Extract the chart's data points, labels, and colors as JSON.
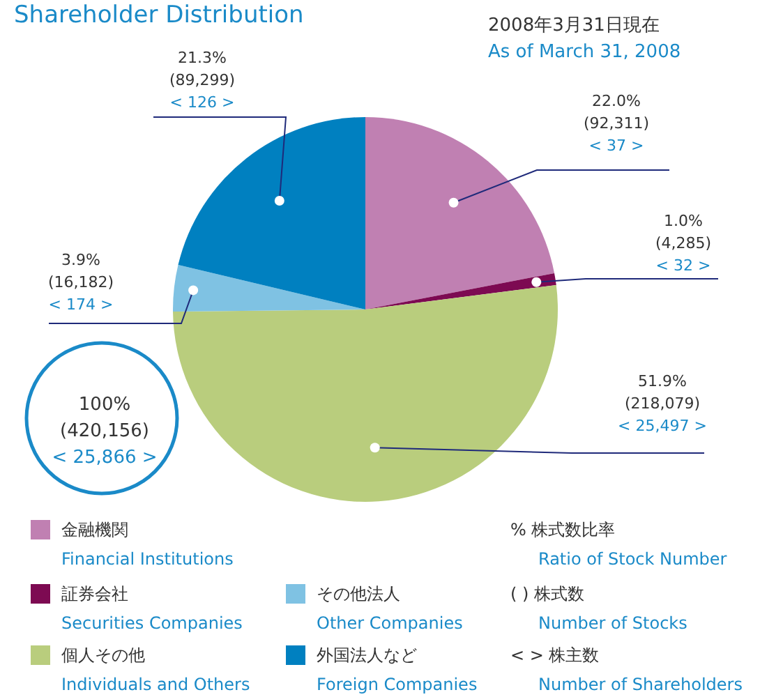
{
  "chart_data": {
    "type": "pie",
    "title": "Shareholder Distribution",
    "subtitle": "2008年3月31日現在\nAs of March 31, 2008",
    "categories": [
      "金融機関\nFinancial Institutions",
      "証券会社\nSecurities Companies",
      "個人その他\nIndividuals and Others",
      "その他法人\nOther Companies",
      "外国法人など\nForeign Companies"
    ],
    "values": [
      22.0,
      1.0,
      51.9,
      3.9,
      21.3
    ],
    "colors": [
      "#c080b2",
      "#7d0a52",
      "#b9cd7d",
      "#7fc2e3",
      "#0080c0"
    ],
    "value_labels": [
      "22.0%\n(92,311)\n< 37 >",
      "1.0%\n(4,285)\n< 32 >",
      "51.9%\n(218,079)\n< 25,497 >",
      "3.9%\n(16,182)\n< 174 >",
      "21.3%\n(89,299)\n< 126 >"
    ],
    "annotations": [
      "100%\n(420,156)\n< 25,866 >",
      "%  株式数比率\nRatio of Stock Number",
      "( )  株式数\nNumber of Stocks",
      "< >  株主数\nNumber of Shareholders"
    ],
    "legend": "bottom"
  }
}
